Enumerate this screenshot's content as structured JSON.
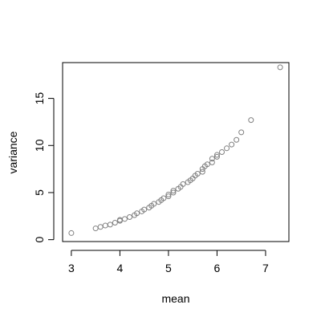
{
  "chart_data": {
    "type": "scatter",
    "title": "",
    "xlabel": "mean",
    "ylabel": "variance",
    "xlim": [
      2.82,
      7.48
    ],
    "ylim": [
      -0.2,
      18.8
    ],
    "xticks": [
      3,
      4,
      5,
      6,
      7
    ],
    "yticks": [
      0,
      5,
      10,
      15
    ],
    "grid": false,
    "point_color": "#808080",
    "series": [
      {
        "x": [
          3.0,
          3.5,
          3.6,
          3.7,
          3.8,
          3.9,
          4.0,
          4.0,
          4.1,
          4.2,
          4.3,
          4.35,
          4.45,
          4.5,
          4.6,
          4.65,
          4.7,
          4.8,
          4.85,
          4.9,
          5.0,
          5.0,
          5.1,
          5.1,
          5.2,
          5.25,
          5.3,
          5.4,
          5.45,
          5.5,
          5.55,
          5.6,
          5.7,
          5.7,
          5.75,
          5.8,
          5.9,
          5.9,
          6.0,
          6.0,
          6.1,
          6.2,
          6.3,
          6.4,
          6.5,
          6.7,
          7.3
        ],
        "y": [
          0.7,
          1.2,
          1.35,
          1.5,
          1.6,
          1.8,
          2.0,
          2.1,
          2.2,
          2.4,
          2.6,
          2.8,
          3.0,
          3.2,
          3.4,
          3.6,
          3.8,
          4.0,
          4.2,
          4.4,
          4.6,
          4.8,
          5.0,
          5.2,
          5.4,
          5.6,
          5.9,
          6.1,
          6.3,
          6.5,
          6.8,
          7.0,
          7.2,
          7.5,
          7.8,
          8.0,
          8.2,
          8.6,
          8.8,
          9.0,
          9.3,
          9.7,
          10.1,
          10.6,
          11.4,
          12.7,
          18.3
        ]
      }
    ]
  }
}
